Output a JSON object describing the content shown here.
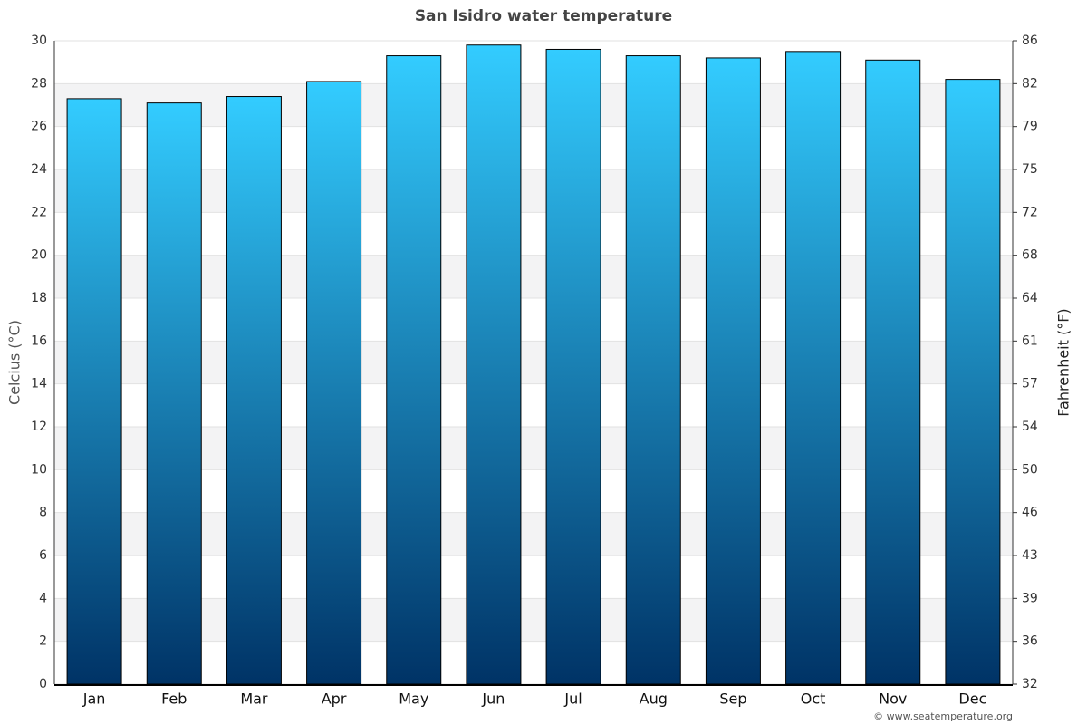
{
  "chart_data": {
    "type": "bar",
    "title": "San Isidro water temperature",
    "categories": [
      "Jan",
      "Feb",
      "Mar",
      "Apr",
      "May",
      "Jun",
      "Jul",
      "Aug",
      "Sep",
      "Oct",
      "Nov",
      "Dec"
    ],
    "values": [
      27.3,
      27.1,
      27.4,
      28.1,
      29.3,
      29.8,
      29.6,
      29.3,
      29.2,
      29.5,
      29.1,
      28.2
    ],
    "colors": [
      "#33ccff",
      "#003366"
    ],
    "ylabel": "Celcius (°C)",
    "y2label": "Fahrenheit (°F)",
    "ylim": [
      0,
      30
    ],
    "yticks": [
      0,
      2,
      4,
      6,
      8,
      10,
      12,
      14,
      16,
      18,
      20,
      22,
      24,
      26,
      28,
      30
    ],
    "y2lim": [
      32,
      86
    ],
    "y2ticks": [
      32,
      {
        "value": 35.6,
        "label": "36"
      },
      {
        "value": 39.2,
        "label": "39"
      },
      {
        "value": 42.8,
        "label": "43"
      },
      {
        "value": 46.4,
        "label": "46"
      },
      50,
      {
        "value": 53.6,
        "label": "54"
      },
      {
        "value": 57.2,
        "label": "57"
      },
      {
        "value": 60.8,
        "label": "61"
      },
      {
        "value": 64.4,
        "label": "64"
      },
      68,
      {
        "value": 71.6,
        "label": "72"
      },
      {
        "value": 75.2,
        "label": "75"
      },
      {
        "value": 78.8,
        "label": "79"
      },
      {
        "value": 82.4,
        "label": "82"
      },
      86
    ],
    "grid": true,
    "credit": "© www.seatemperature.org"
  }
}
